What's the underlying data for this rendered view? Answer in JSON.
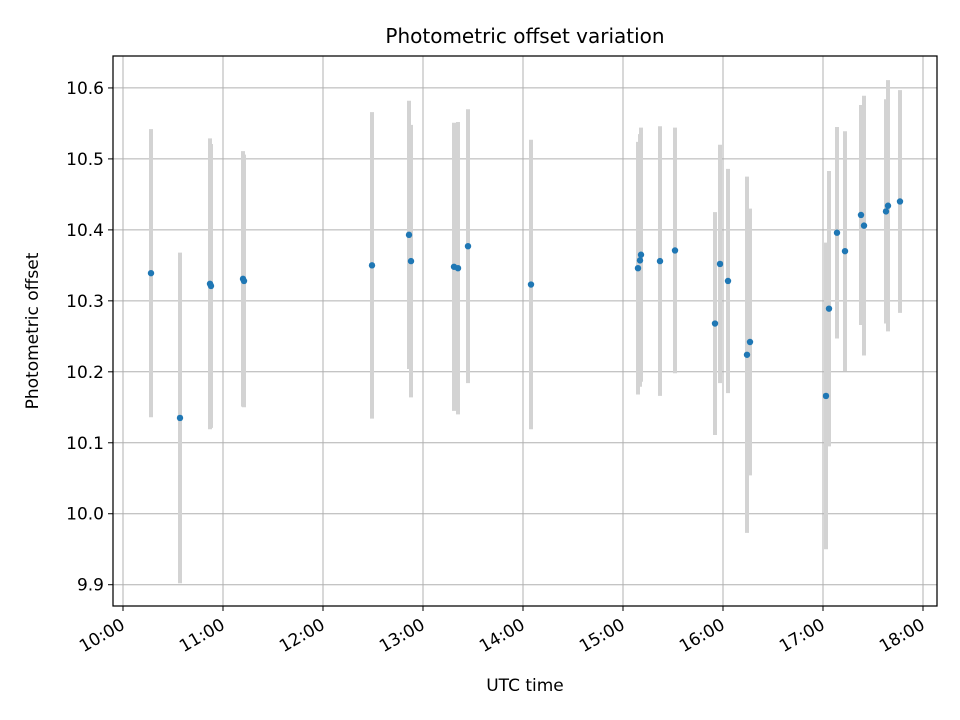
{
  "chart_data": {
    "type": "scatter",
    "title": "Photometric offset variation",
    "xlabel": "UTC time",
    "ylabel": "Photometric offset",
    "x_unit": "hours UTC",
    "xlim": [
      9.9,
      18.14
    ],
    "ylim": [
      9.87,
      10.645
    ],
    "x_ticks": [
      {
        "value": 10,
        "label": "10:00"
      },
      {
        "value": 11,
        "label": "11:00"
      },
      {
        "value": 12,
        "label": "12:00"
      },
      {
        "value": 13,
        "label": "13:00"
      },
      {
        "value": 14,
        "label": "14:00"
      },
      {
        "value": 15,
        "label": "15:00"
      },
      {
        "value": 16,
        "label": "16:00"
      },
      {
        "value": 17,
        "label": "17:00"
      },
      {
        "value": 18,
        "label": "18:00"
      }
    ],
    "y_ticks": [
      {
        "value": 9.9,
        "label": "9.9"
      },
      {
        "value": 10.0,
        "label": "10.0"
      },
      {
        "value": 10.1,
        "label": "10.1"
      },
      {
        "value": 10.2,
        "label": "10.2"
      },
      {
        "value": 10.3,
        "label": "10.3"
      },
      {
        "value": 10.4,
        "label": "10.4"
      },
      {
        "value": 10.5,
        "label": "10.5"
      },
      {
        "value": 10.6,
        "label": "10.6"
      }
    ],
    "grid": true,
    "colors": {
      "points": "#1f77b4",
      "errorbars": "#d3d3d3",
      "grid": "#b0b0b0",
      "axes": "#000000"
    },
    "points": [
      {
        "x": 10.28,
        "y": 10.339,
        "err": 0.203
      },
      {
        "x": 10.57,
        "y": 10.135,
        "err": 0.233
      },
      {
        "x": 10.87,
        "y": 10.324,
        "err": 0.205
      },
      {
        "x": 10.88,
        "y": 10.321,
        "err": 0.2
      },
      {
        "x": 11.2,
        "y": 10.331,
        "err": 0.18
      },
      {
        "x": 11.21,
        "y": 10.328,
        "err": 0.178
      },
      {
        "x": 12.49,
        "y": 10.35,
        "err": 0.216
      },
      {
        "x": 12.86,
        "y": 10.393,
        "err": 0.189
      },
      {
        "x": 12.88,
        "y": 10.356,
        "err": 0.192
      },
      {
        "x": 13.31,
        "y": 10.348,
        "err": 0.203
      },
      {
        "x": 13.35,
        "y": 10.346,
        "err": 0.206
      },
      {
        "x": 13.45,
        "y": 10.377,
        "err": 0.193
      },
      {
        "x": 14.08,
        "y": 10.323,
        "err": 0.204
      },
      {
        "x": 15.15,
        "y": 10.346,
        "err": 0.178
      },
      {
        "x": 15.17,
        "y": 10.357,
        "err": 0.178
      },
      {
        "x": 15.18,
        "y": 10.365,
        "err": 0.179
      },
      {
        "x": 15.37,
        "y": 10.356,
        "err": 0.19
      },
      {
        "x": 15.52,
        "y": 10.371,
        "err": 0.173
      },
      {
        "x": 15.92,
        "y": 10.268,
        "err": 0.157
      },
      {
        "x": 15.97,
        "y": 10.352,
        "err": 0.168
      },
      {
        "x": 16.05,
        "y": 10.328,
        "err": 0.158
      },
      {
        "x": 16.24,
        "y": 10.224,
        "err": 0.251
      },
      {
        "x": 16.27,
        "y": 10.242,
        "err": 0.188
      },
      {
        "x": 17.03,
        "y": 10.166,
        "err": 0.216
      },
      {
        "x": 17.06,
        "y": 10.289,
        "err": 0.194
      },
      {
        "x": 17.14,
        "y": 10.396,
        "err": 0.149
      },
      {
        "x": 17.22,
        "y": 10.37,
        "err": 0.169
      },
      {
        "x": 17.38,
        "y": 10.421,
        "err": 0.155
      },
      {
        "x": 17.41,
        "y": 10.406,
        "err": 0.183
      },
      {
        "x": 17.63,
        "y": 10.426,
        "err": 0.158
      },
      {
        "x": 17.65,
        "y": 10.434,
        "err": 0.177
      },
      {
        "x": 17.77,
        "y": 10.44,
        "err": 0.157
      }
    ]
  }
}
